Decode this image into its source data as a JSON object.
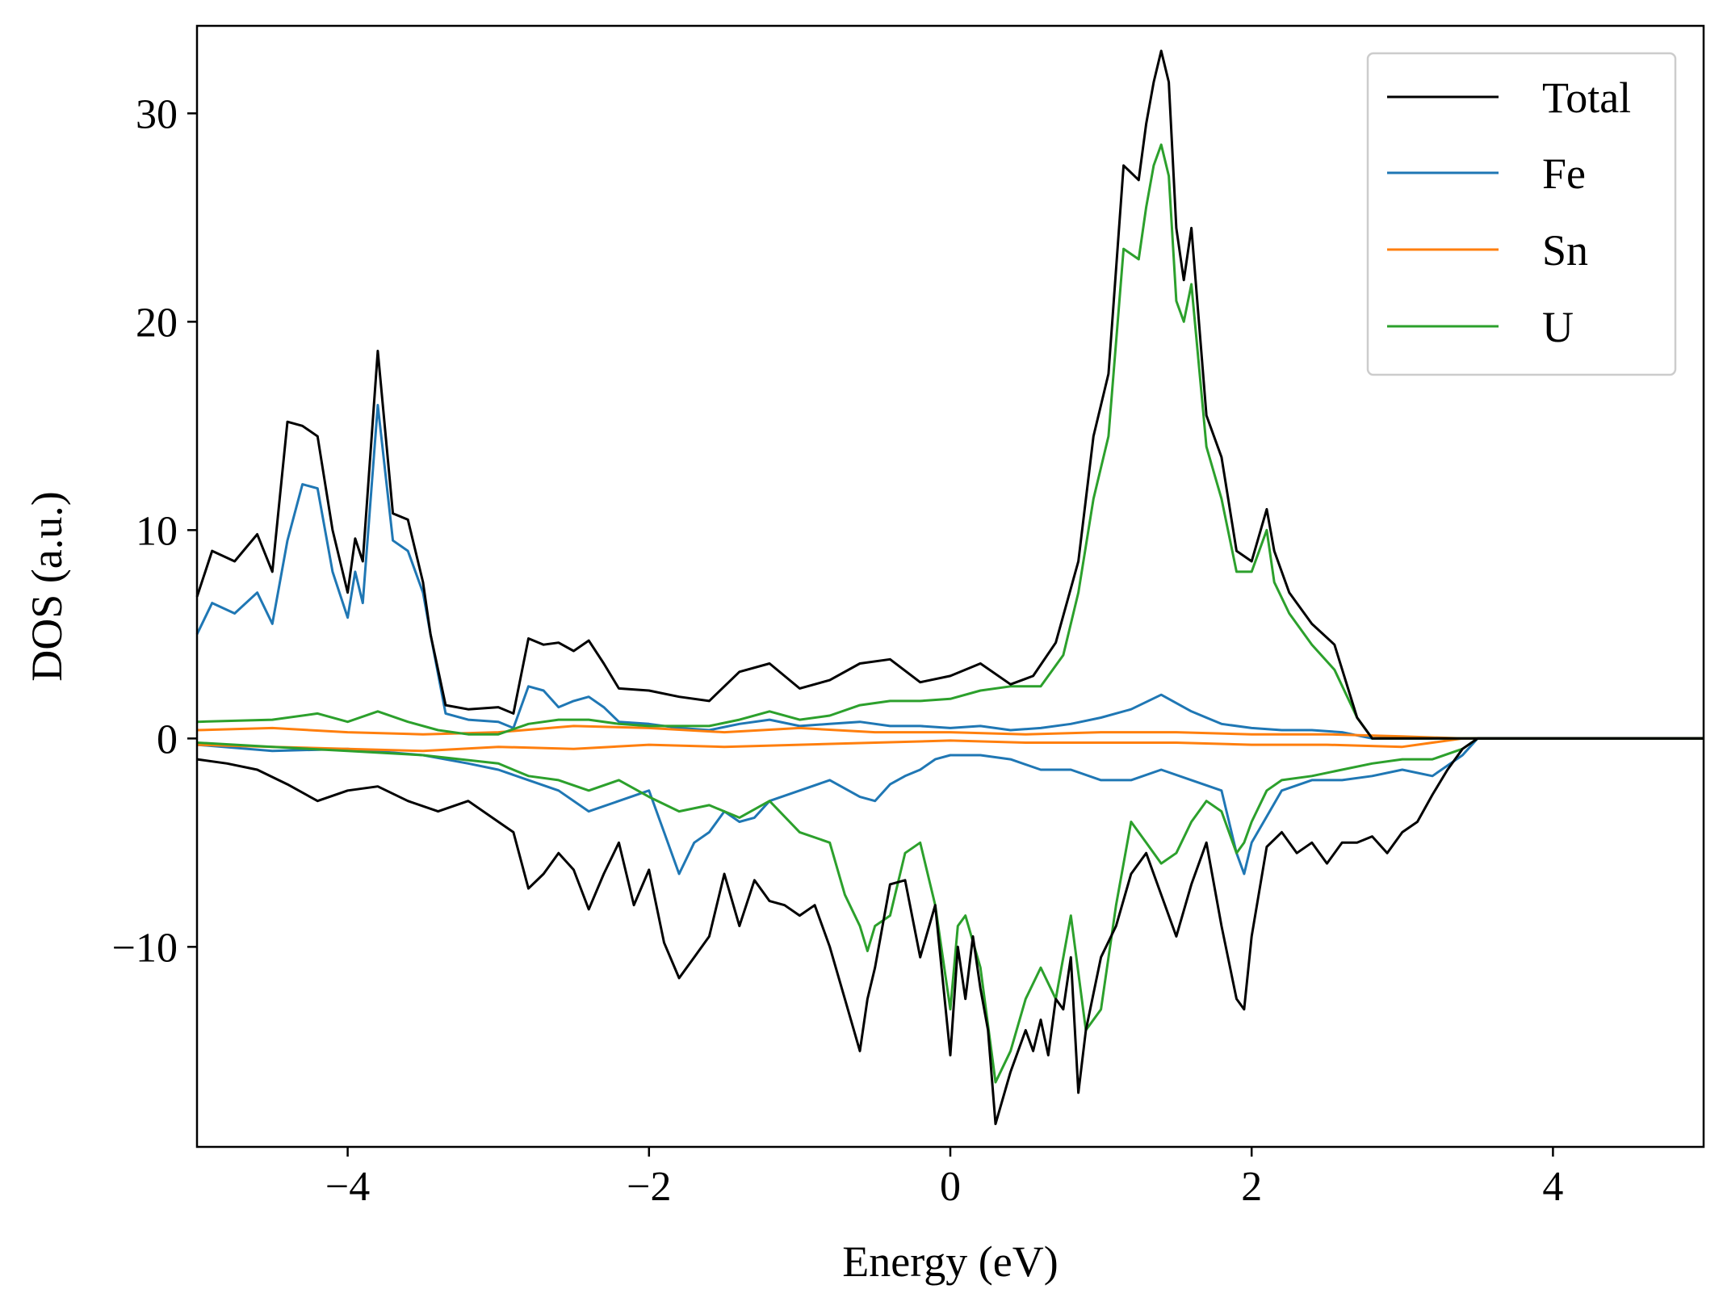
{
  "chart_data": {
    "type": "line",
    "xlabel": "Energy (eV)",
    "ylabel": "DOS (a.u.)",
    "xlim": [
      -5,
      5
    ],
    "ylim": [
      -19.6,
      34.2
    ],
    "xticks": [
      -4,
      -2,
      0,
      2,
      4
    ],
    "xtick_labels": [
      "−4",
      "−2",
      "0",
      "2",
      "4"
    ],
    "yticks": [
      -10,
      0,
      10,
      20,
      30
    ],
    "ytick_labels": [
      "−10",
      "0",
      "10",
      "20",
      "30"
    ],
    "grid": false,
    "legend_position": "top-right",
    "colors": {
      "Total": "#000000",
      "Fe": "#1f77b4",
      "Sn": "#ff7f0e",
      "U": "#2ca02c"
    },
    "series": [
      {
        "name": "Total",
        "color": "#000000",
        "direction": "up",
        "x": [
          -5.0,
          -4.9,
          -4.75,
          -4.6,
          -4.5,
          -4.4,
          -4.3,
          -4.2,
          -4.1,
          -4.0,
          -3.95,
          -3.9,
          -3.8,
          -3.7,
          -3.6,
          -3.5,
          -3.45,
          -3.35,
          -3.2,
          -3.0,
          -2.9,
          -2.8,
          -2.7,
          -2.6,
          -2.5,
          -2.4,
          -2.3,
          -2.2,
          -2.0,
          -1.8,
          -1.6,
          -1.4,
          -1.2,
          -1.0,
          -0.8,
          -0.6,
          -0.4,
          -0.2,
          0.0,
          0.2,
          0.4,
          0.55,
          0.7,
          0.85,
          0.95,
          1.05,
          1.15,
          1.25,
          1.3,
          1.35,
          1.4,
          1.45,
          1.5,
          1.55,
          1.6,
          1.7,
          1.8,
          1.9,
          2.0,
          2.1,
          2.15,
          2.25,
          2.4,
          2.55,
          2.7,
          2.8,
          3.0,
          3.2,
          3.5,
          4.0,
          5.0
        ],
        "y": [
          6.8,
          9.0,
          8.5,
          9.8,
          8.0,
          15.2,
          15.0,
          14.5,
          10.0,
          7.0,
          9.6,
          8.5,
          18.6,
          10.8,
          10.5,
          7.5,
          5.0,
          1.6,
          1.4,
          1.5,
          1.2,
          4.8,
          4.5,
          4.6,
          4.2,
          4.7,
          3.6,
          2.4,
          2.3,
          2.0,
          1.8,
          3.2,
          3.6,
          2.4,
          2.8,
          3.6,
          3.8,
          2.7,
          3.0,
          3.6,
          2.6,
          3.0,
          4.6,
          8.5,
          14.5,
          17.5,
          27.5,
          26.8,
          29.5,
          31.5,
          33.0,
          31.5,
          24.5,
          22.0,
          24.5,
          15.5,
          13.5,
          9.0,
          8.5,
          11.0,
          9.0,
          7.0,
          5.5,
          4.5,
          1.0,
          0.0,
          0.0,
          0.0,
          0.0,
          0.0,
          0.0
        ]
      },
      {
        "name": "Fe",
        "color": "#1f77b4",
        "direction": "up",
        "x": [
          -5.0,
          -4.9,
          -4.75,
          -4.6,
          -4.5,
          -4.4,
          -4.3,
          -4.2,
          -4.1,
          -4.0,
          -3.95,
          -3.9,
          -3.8,
          -3.7,
          -3.6,
          -3.5,
          -3.45,
          -3.35,
          -3.2,
          -3.0,
          -2.9,
          -2.8,
          -2.7,
          -2.6,
          -2.5,
          -2.4,
          -2.3,
          -2.2,
          -2.0,
          -1.8,
          -1.6,
          -1.4,
          -1.2,
          -1.0,
          -0.8,
          -0.6,
          -0.4,
          -0.2,
          0.0,
          0.2,
          0.4,
          0.6,
          0.8,
          1.0,
          1.2,
          1.4,
          1.6,
          1.8,
          2.0,
          2.2,
          2.4,
          2.6,
          2.8,
          3.0,
          5.0
        ],
        "y": [
          5.0,
          6.5,
          6.0,
          7.0,
          5.5,
          9.5,
          12.2,
          12.0,
          8.0,
          5.8,
          8.0,
          6.5,
          16.0,
          9.5,
          9.0,
          7.0,
          5.0,
          1.2,
          0.9,
          0.8,
          0.5,
          2.5,
          2.3,
          1.5,
          1.8,
          2.0,
          1.5,
          0.8,
          0.7,
          0.5,
          0.4,
          0.7,
          0.9,
          0.6,
          0.7,
          0.8,
          0.6,
          0.6,
          0.5,
          0.6,
          0.4,
          0.5,
          0.7,
          1.0,
          1.4,
          2.1,
          1.3,
          0.7,
          0.5,
          0.4,
          0.4,
          0.3,
          0.0,
          0.0,
          0.0
        ]
      },
      {
        "name": "Sn",
        "color": "#ff7f0e",
        "direction": "up",
        "x": [
          -5.0,
          -4.5,
          -4.0,
          -3.5,
          -3.0,
          -2.5,
          -2.0,
          -1.5,
          -1.0,
          -0.5,
          0.0,
          0.5,
          1.0,
          1.5,
          2.0,
          2.5,
          3.0,
          3.4,
          5.0
        ],
        "y": [
          0.4,
          0.5,
          0.3,
          0.2,
          0.3,
          0.6,
          0.5,
          0.3,
          0.5,
          0.3,
          0.3,
          0.2,
          0.3,
          0.3,
          0.2,
          0.2,
          0.1,
          0.0,
          0.0
        ]
      },
      {
        "name": "U",
        "color": "#2ca02c",
        "direction": "up",
        "x": [
          -5.0,
          -4.5,
          -4.2,
          -4.0,
          -3.8,
          -3.6,
          -3.4,
          -3.2,
          -3.0,
          -2.8,
          -2.6,
          -2.4,
          -2.2,
          -2.0,
          -1.8,
          -1.6,
          -1.4,
          -1.2,
          -1.0,
          -0.8,
          -0.6,
          -0.4,
          -0.2,
          0.0,
          0.2,
          0.4,
          0.6,
          0.75,
          0.85,
          0.95,
          1.05,
          1.15,
          1.25,
          1.3,
          1.35,
          1.4,
          1.45,
          1.5,
          1.55,
          1.6,
          1.7,
          1.8,
          1.9,
          2.0,
          2.1,
          2.15,
          2.25,
          2.4,
          2.55,
          2.7,
          2.8,
          3.0,
          5.0
        ],
        "y": [
          0.8,
          0.9,
          1.2,
          0.8,
          1.3,
          0.8,
          0.4,
          0.2,
          0.2,
          0.7,
          0.9,
          0.9,
          0.7,
          0.6,
          0.6,
          0.6,
          0.9,
          1.3,
          0.9,
          1.1,
          1.6,
          1.8,
          1.8,
          1.9,
          2.3,
          2.5,
          2.5,
          4.0,
          7.0,
          11.5,
          14.5,
          23.5,
          23.0,
          25.5,
          27.5,
          28.5,
          27.0,
          21.0,
          20.0,
          21.8,
          14.0,
          11.5,
          8.0,
          8.0,
          10.0,
          7.5,
          6.0,
          4.5,
          3.3,
          1.0,
          0.0,
          0.0,
          0.0
        ]
      },
      {
        "name": "Total",
        "color": "#000000",
        "direction": "down",
        "x": [
          -5.0,
          -4.8,
          -4.6,
          -4.4,
          -4.2,
          -4.0,
          -3.8,
          -3.6,
          -3.4,
          -3.2,
          -3.0,
          -2.9,
          -2.8,
          -2.7,
          -2.6,
          -2.5,
          -2.4,
          -2.3,
          -2.2,
          -2.1,
          -2.0,
          -1.9,
          -1.8,
          -1.7,
          -1.6,
          -1.5,
          -1.4,
          -1.3,
          -1.2,
          -1.1,
          -1.0,
          -0.9,
          -0.8,
          -0.7,
          -0.6,
          -0.55,
          -0.5,
          -0.4,
          -0.3,
          -0.2,
          -0.1,
          0.0,
          0.05,
          0.1,
          0.15,
          0.2,
          0.25,
          0.3,
          0.4,
          0.5,
          0.55,
          0.6,
          0.65,
          0.7,
          0.75,
          0.8,
          0.85,
          0.9,
          1.0,
          1.1,
          1.2,
          1.3,
          1.4,
          1.5,
          1.6,
          1.7,
          1.8,
          1.9,
          1.95,
          2.0,
          2.1,
          2.2,
          2.3,
          2.4,
          2.5,
          2.6,
          2.7,
          2.8,
          2.9,
          3.0,
          3.1,
          3.2,
          3.3,
          3.4,
          3.5,
          5.0
        ],
        "y": [
          -1.0,
          -1.2,
          -1.5,
          -2.2,
          -3.0,
          -2.5,
          -2.3,
          -3.0,
          -3.5,
          -3.0,
          -4.0,
          -4.5,
          -7.2,
          -6.5,
          -5.5,
          -6.3,
          -8.2,
          -6.5,
          -5.0,
          -8.0,
          -6.3,
          -9.8,
          -11.5,
          -10.5,
          -9.5,
          -6.5,
          -9.0,
          -6.8,
          -7.8,
          -8.0,
          -8.5,
          -8.0,
          -10.0,
          -12.5,
          -15.0,
          -12.5,
          -11.0,
          -7.0,
          -6.8,
          -10.5,
          -8.0,
          -15.2,
          -10.0,
          -12.5,
          -9.5,
          -12.0,
          -14.0,
          -18.5,
          -16.0,
          -14.0,
          -15.0,
          -13.5,
          -15.2,
          -12.5,
          -13.0,
          -10.5,
          -17.0,
          -14.0,
          -10.5,
          -9.0,
          -6.5,
          -5.5,
          -7.5,
          -9.5,
          -7.0,
          -5.0,
          -9.0,
          -12.5,
          -13.0,
          -9.5,
          -5.2,
          -4.5,
          -5.5,
          -5.0,
          -6.0,
          -5.0,
          -5.0,
          -4.7,
          -5.5,
          -4.5,
          -4.0,
          -2.7,
          -1.5,
          -0.5,
          0.0,
          0.0
        ]
      },
      {
        "name": "Fe",
        "color": "#1f77b4",
        "direction": "down",
        "x": [
          -5.0,
          -4.5,
          -4.0,
          -3.5,
          -3.2,
          -3.0,
          -2.8,
          -2.6,
          -2.4,
          -2.2,
          -2.0,
          -1.9,
          -1.8,
          -1.7,
          -1.6,
          -1.5,
          -1.4,
          -1.3,
          -1.2,
          -1.0,
          -0.8,
          -0.6,
          -0.5,
          -0.4,
          -0.3,
          -0.2,
          -0.1,
          0.0,
          0.2,
          0.4,
          0.6,
          0.8,
          1.0,
          1.2,
          1.4,
          1.6,
          1.8,
          1.9,
          1.95,
          2.0,
          2.2,
          2.4,
          2.6,
          2.8,
          3.0,
          3.2,
          3.4,
          3.5,
          5.0
        ],
        "y": [
          -0.3,
          -0.6,
          -0.5,
          -0.8,
          -1.2,
          -1.5,
          -2.0,
          -2.5,
          -3.5,
          -3.0,
          -2.5,
          -4.5,
          -6.5,
          -5.0,
          -4.5,
          -3.5,
          -4.0,
          -3.8,
          -3.0,
          -2.5,
          -2.0,
          -2.8,
          -3.0,
          -2.2,
          -1.8,
          -1.5,
          -1.0,
          -0.8,
          -0.8,
          -1.0,
          -1.5,
          -1.5,
          -2.0,
          -2.0,
          -1.5,
          -2.0,
          -2.5,
          -5.5,
          -6.5,
          -5.0,
          -2.5,
          -2.0,
          -2.0,
          -1.8,
          -1.5,
          -1.8,
          -0.8,
          0.0,
          0.0
        ]
      },
      {
        "name": "Sn",
        "color": "#ff7f0e",
        "direction": "down",
        "x": [
          -5.0,
          -4.5,
          -4.0,
          -3.5,
          -3.0,
          -2.5,
          -2.0,
          -1.5,
          -1.0,
          -0.5,
          0.0,
          0.5,
          1.0,
          1.5,
          2.0,
          2.5,
          3.0,
          3.4,
          5.0
        ],
        "y": [
          -0.3,
          -0.4,
          -0.5,
          -0.6,
          -0.4,
          -0.5,
          -0.3,
          -0.4,
          -0.3,
          -0.2,
          -0.1,
          -0.2,
          -0.2,
          -0.2,
          -0.3,
          -0.3,
          -0.4,
          0.0,
          0.0
        ]
      },
      {
        "name": "U",
        "color": "#2ca02c",
        "direction": "down",
        "x": [
          -5.0,
          -4.5,
          -4.0,
          -3.5,
          -3.0,
          -2.8,
          -2.6,
          -2.4,
          -2.2,
          -2.0,
          -1.8,
          -1.6,
          -1.4,
          -1.2,
          -1.0,
          -0.8,
          -0.7,
          -0.6,
          -0.55,
          -0.5,
          -0.4,
          -0.3,
          -0.2,
          -0.1,
          0.0,
          0.05,
          0.1,
          0.2,
          0.3,
          0.4,
          0.5,
          0.6,
          0.7,
          0.8,
          0.9,
          1.0,
          1.1,
          1.2,
          1.3,
          1.4,
          1.5,
          1.6,
          1.7,
          1.8,
          1.9,
          1.95,
          2.0,
          2.1,
          2.2,
          2.4,
          2.6,
          2.8,
          3.0,
          3.2,
          3.4,
          3.5,
          5.0
        ],
        "y": [
          -0.2,
          -0.4,
          -0.6,
          -0.8,
          -1.2,
          -1.8,
          -2.0,
          -2.5,
          -2.0,
          -2.8,
          -3.5,
          -3.2,
          -3.8,
          -3.0,
          -4.5,
          -5.0,
          -7.5,
          -9.0,
          -10.2,
          -9.0,
          -8.5,
          -5.5,
          -5.0,
          -8.0,
          -13.0,
          -9.0,
          -8.5,
          -11.0,
          -16.5,
          -15.0,
          -12.5,
          -11.0,
          -12.5,
          -8.5,
          -14.0,
          -13.0,
          -8.0,
          -4.0,
          -5.0,
          -6.0,
          -5.5,
          -4.0,
          -3.0,
          -3.5,
          -5.5,
          -5.0,
          -4.0,
          -2.5,
          -2.0,
          -1.8,
          -1.5,
          -1.2,
          -1.0,
          -1.0,
          -0.5,
          0.0,
          0.0
        ]
      }
    ]
  }
}
